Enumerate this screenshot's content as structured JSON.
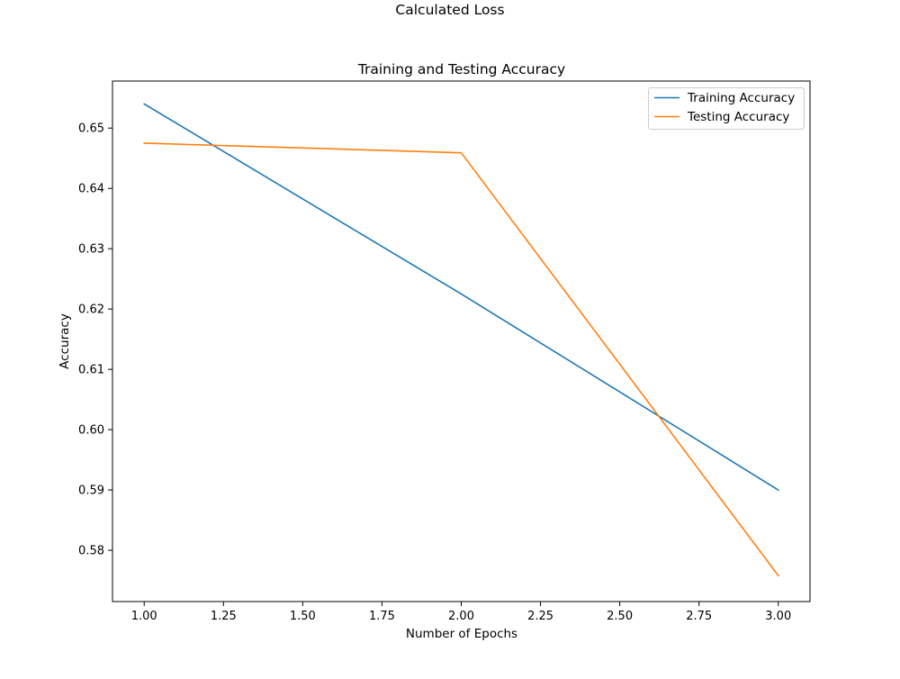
{
  "figure": {
    "suptitle": "Calculated Loss"
  },
  "chart_data": {
    "type": "line",
    "title": "Training and Testing Accuracy",
    "xlabel": "Number of Epochs",
    "ylabel": "Accuracy",
    "x": [
      1,
      2,
      3
    ],
    "series": [
      {
        "name": "Training Accuracy",
        "values": [
          0.654,
          0.6225,
          0.59
        ],
        "color": "#1f77b4"
      },
      {
        "name": "Testing Accuracy",
        "values": [
          0.6475,
          0.6459,
          0.5758
        ],
        "color": "#ff7f0e"
      }
    ],
    "xlim": [
      0.9,
      3.1
    ],
    "ylim": [
      0.5715,
      0.6578
    ],
    "xticks": [
      1.0,
      1.25,
      1.5,
      1.75,
      2.0,
      2.25,
      2.5,
      2.75,
      3.0
    ],
    "xtick_labels": [
      "1.00",
      "1.25",
      "1.50",
      "1.75",
      "2.00",
      "2.25",
      "2.50",
      "2.75",
      "3.00"
    ],
    "yticks": [
      0.58,
      0.59,
      0.6,
      0.61,
      0.62,
      0.63,
      0.64,
      0.65
    ],
    "ytick_labels": [
      "0.58",
      "0.59",
      "0.60",
      "0.61",
      "0.62",
      "0.63",
      "0.64",
      "0.65"
    ],
    "grid": false,
    "legend_position": "top-right"
  }
}
